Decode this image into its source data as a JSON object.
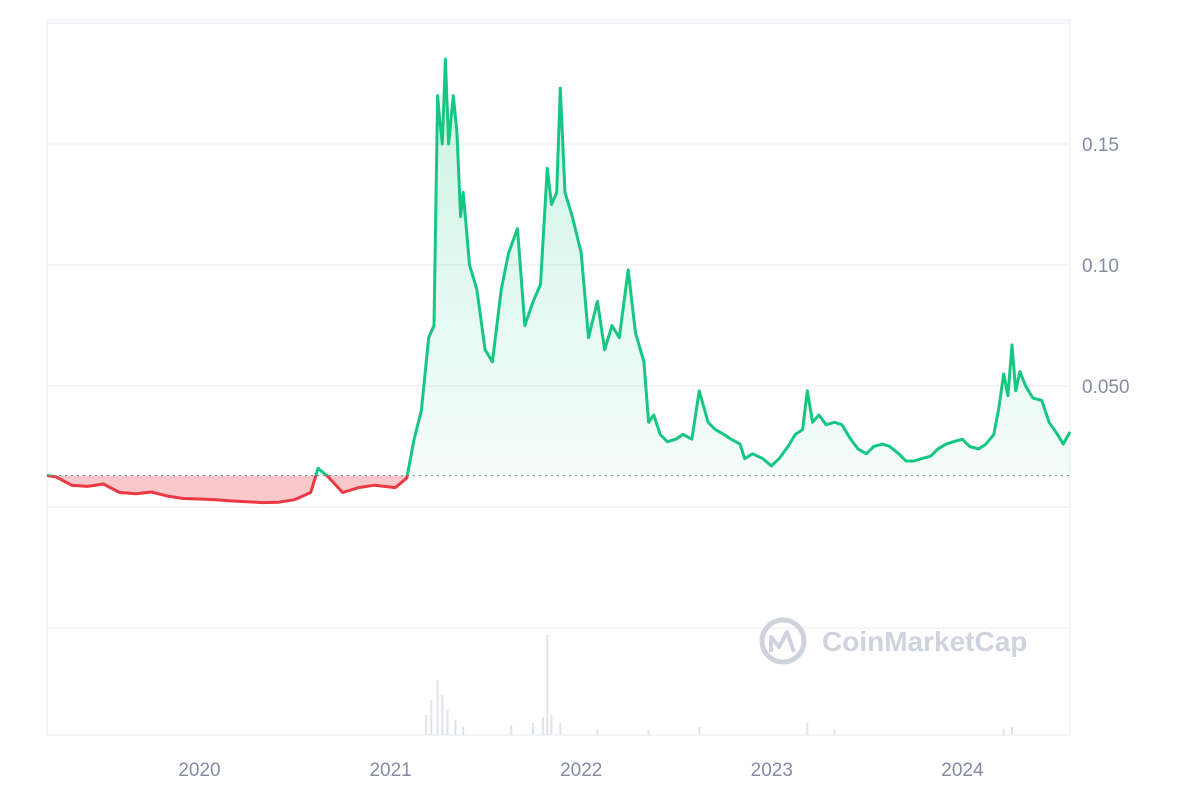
{
  "chart_data": {
    "type": "area",
    "y_ticks": [
      {
        "value": 0.05,
        "label": "0.050"
      },
      {
        "value": 0.1,
        "label": "0.10"
      },
      {
        "value": 0.15,
        "label": "0.15"
      }
    ],
    "x_ticks": [
      {
        "value": "2020-01-01",
        "label": "2020"
      },
      {
        "value": "2021-01-01",
        "label": "2021"
      },
      {
        "value": "2022-01-01",
        "label": "2022"
      },
      {
        "value": "2023-01-01",
        "label": "2023"
      },
      {
        "value": "2024-01-01",
        "label": "2024"
      }
    ],
    "x_range": [
      "2019-03-15",
      "2024-07-25"
    ],
    "y_range": [
      0,
      0.2
    ],
    "baseline": 0.013,
    "grid": true,
    "colors": {
      "up": "#16c784",
      "down": "#ea3943",
      "grid": "#eff2f5",
      "volume": "#dfe3ea"
    },
    "series": [
      {
        "points": [
          [
            "2019-03-15",
            0.013
          ],
          [
            "2019-04-01",
            0.0125
          ],
          [
            "2019-05-01",
            0.009
          ],
          [
            "2019-06-01",
            0.0085
          ],
          [
            "2019-07-01",
            0.0095
          ],
          [
            "2019-08-01",
            0.006
          ],
          [
            "2019-09-01",
            0.0055
          ],
          [
            "2019-10-01",
            0.0062
          ],
          [
            "2019-11-01",
            0.0045
          ],
          [
            "2019-12-01",
            0.0035
          ],
          [
            "2020-01-01",
            0.0033
          ],
          [
            "2020-02-01",
            0.003
          ],
          [
            "2020-03-01",
            0.0025
          ],
          [
            "2020-04-01",
            0.0022
          ],
          [
            "2020-05-01",
            0.0018
          ],
          [
            "2020-06-01",
            0.002
          ],
          [
            "2020-07-01",
            0.003
          ],
          [
            "2020-08-01",
            0.006
          ],
          [
            "2020-08-15",
            0.016
          ],
          [
            "2020-09-01",
            0.013
          ],
          [
            "2020-10-01",
            0.006
          ],
          [
            "2020-11-01",
            0.008
          ],
          [
            "2020-12-01",
            0.009
          ],
          [
            "2021-01-10",
            0.008
          ],
          [
            "2021-02-01",
            0.012
          ],
          [
            "2021-02-15",
            0.028
          ],
          [
            "2021-03-01",
            0.04
          ],
          [
            "2021-03-15",
            0.07
          ],
          [
            "2021-03-25",
            0.075
          ],
          [
            "2021-04-01",
            0.17
          ],
          [
            "2021-04-05",
            0.16
          ],
          [
            "2021-04-10",
            0.15
          ],
          [
            "2021-04-16",
            0.185
          ],
          [
            "2021-04-22",
            0.15
          ],
          [
            "2021-05-01",
            0.17
          ],
          [
            "2021-05-08",
            0.155
          ],
          [
            "2021-05-15",
            0.12
          ],
          [
            "2021-05-20",
            0.13
          ],
          [
            "2021-06-01",
            0.1
          ],
          [
            "2021-06-15",
            0.09
          ],
          [
            "2021-07-01",
            0.065
          ],
          [
            "2021-07-15",
            0.06
          ],
          [
            "2021-08-01",
            0.09
          ],
          [
            "2021-08-15",
            0.105
          ],
          [
            "2021-09-01",
            0.115
          ],
          [
            "2021-09-15",
            0.075
          ],
          [
            "2021-10-01",
            0.085
          ],
          [
            "2021-10-15",
            0.092
          ],
          [
            "2021-10-28",
            0.14
          ],
          [
            "2021-11-05",
            0.125
          ],
          [
            "2021-11-15",
            0.13
          ],
          [
            "2021-11-22",
            0.173
          ],
          [
            "2021-12-01",
            0.13
          ],
          [
            "2021-12-15",
            0.12
          ],
          [
            "2022-01-01",
            0.105
          ],
          [
            "2022-01-15",
            0.07
          ],
          [
            "2022-02-01",
            0.085
          ],
          [
            "2022-02-15",
            0.065
          ],
          [
            "2022-03-01",
            0.075
          ],
          [
            "2022-03-15",
            0.07
          ],
          [
            "2022-04-01",
            0.098
          ],
          [
            "2022-04-15",
            0.072
          ],
          [
            "2022-05-01",
            0.06
          ],
          [
            "2022-05-10",
            0.035
          ],
          [
            "2022-05-20",
            0.038
          ],
          [
            "2022-06-01",
            0.03
          ],
          [
            "2022-06-15",
            0.027
          ],
          [
            "2022-07-01",
            0.028
          ],
          [
            "2022-07-15",
            0.03
          ],
          [
            "2022-08-01",
            0.028
          ],
          [
            "2022-08-15",
            0.048
          ],
          [
            "2022-09-01",
            0.035
          ],
          [
            "2022-09-15",
            0.032
          ],
          [
            "2022-10-01",
            0.03
          ],
          [
            "2022-10-15",
            0.028
          ],
          [
            "2022-11-01",
            0.026
          ],
          [
            "2022-11-10",
            0.02
          ],
          [
            "2022-11-25",
            0.022
          ],
          [
            "2022-12-15",
            0.02
          ],
          [
            "2022-12-31",
            0.017
          ],
          [
            "2023-01-15",
            0.02
          ],
          [
            "2023-02-01",
            0.025
          ],
          [
            "2023-02-15",
            0.03
          ],
          [
            "2023-03-01",
            0.032
          ],
          [
            "2023-03-10",
            0.048
          ],
          [
            "2023-03-20",
            0.035
          ],
          [
            "2023-04-01",
            0.038
          ],
          [
            "2023-04-15",
            0.034
          ],
          [
            "2023-05-01",
            0.035
          ],
          [
            "2023-05-15",
            0.034
          ],
          [
            "2023-06-01",
            0.028
          ],
          [
            "2023-06-15",
            0.024
          ],
          [
            "2023-07-01",
            0.022
          ],
          [
            "2023-07-15",
            0.025
          ],
          [
            "2023-08-01",
            0.026
          ],
          [
            "2023-08-15",
            0.025
          ],
          [
            "2023-09-01",
            0.022
          ],
          [
            "2023-09-15",
            0.019
          ],
          [
            "2023-10-01",
            0.019
          ],
          [
            "2023-10-15",
            0.02
          ],
          [
            "2023-11-01",
            0.021
          ],
          [
            "2023-11-15",
            0.024
          ],
          [
            "2023-12-01",
            0.026
          ],
          [
            "2023-12-15",
            0.027
          ],
          [
            "2024-01-01",
            0.028
          ],
          [
            "2024-01-15",
            0.025
          ],
          [
            "2024-02-01",
            0.024
          ],
          [
            "2024-02-15",
            0.026
          ],
          [
            "2024-03-01",
            0.03
          ],
          [
            "2024-03-10",
            0.04
          ],
          [
            "2024-03-20",
            0.055
          ],
          [
            "2024-03-28",
            0.046
          ],
          [
            "2024-04-05",
            0.067
          ],
          [
            "2024-04-12",
            0.048
          ],
          [
            "2024-04-20",
            0.056
          ],
          [
            "2024-05-01",
            0.05
          ],
          [
            "2024-05-15",
            0.045
          ],
          [
            "2024-06-01",
            0.044
          ],
          [
            "2024-06-15",
            0.035
          ],
          [
            "2024-07-01",
            0.03
          ],
          [
            "2024-07-12",
            0.026
          ],
          [
            "2024-07-25",
            0.031
          ]
        ]
      }
    ],
    "volume": [
      {
        "date": "2021-03-10",
        "value": 20
      },
      {
        "date": "2021-03-20",
        "value": 35
      },
      {
        "date": "2021-04-01",
        "value": 55
      },
      {
        "date": "2021-04-10",
        "value": 40
      },
      {
        "date": "2021-04-20",
        "value": 25
      },
      {
        "date": "2021-05-05",
        "value": 15
      },
      {
        "date": "2021-05-20",
        "value": 8
      },
      {
        "date": "2021-08-20",
        "value": 10
      },
      {
        "date": "2021-10-01",
        "value": 12
      },
      {
        "date": "2021-10-20",
        "value": 18
      },
      {
        "date": "2021-10-28",
        "value": 100
      },
      {
        "date": "2021-11-05",
        "value": 20
      },
      {
        "date": "2021-11-22",
        "value": 12
      },
      {
        "date": "2022-02-01",
        "value": 6
      },
      {
        "date": "2022-05-10",
        "value": 5
      },
      {
        "date": "2022-08-15",
        "value": 8
      },
      {
        "date": "2023-03-10",
        "value": 12
      },
      {
        "date": "2023-05-01",
        "value": 5
      },
      {
        "date": "2024-03-20",
        "value": 6
      },
      {
        "date": "2024-04-05",
        "value": 8
      }
    ]
  },
  "watermark": {
    "text": "CoinMarketCap",
    "icon": "coinmarketcap-logo-icon"
  }
}
